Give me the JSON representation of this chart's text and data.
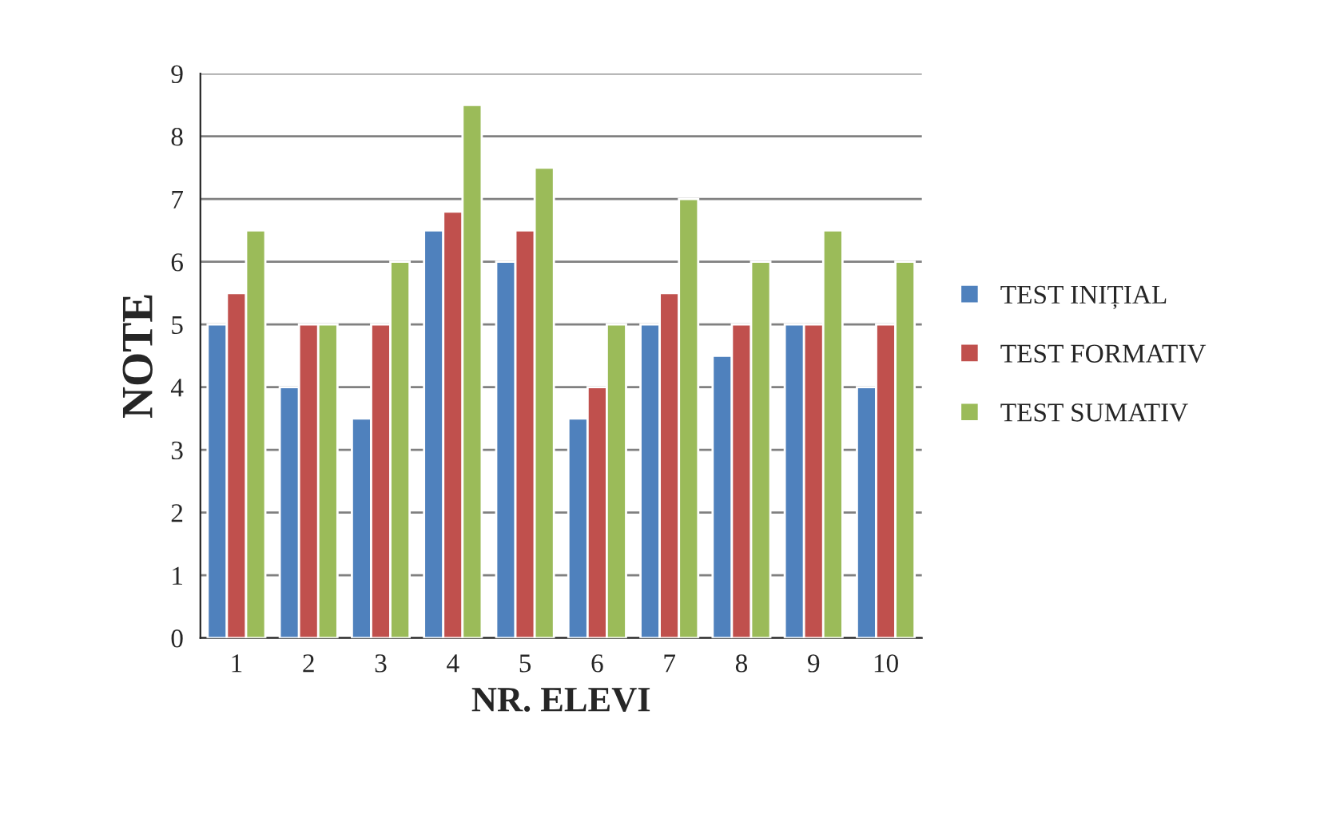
{
  "chart_data": {
    "type": "bar",
    "xlabel": "NR. ELEVI",
    "ylabel": "NOTE",
    "categories": [
      "1",
      "2",
      "3",
      "4",
      "5",
      "6",
      "7",
      "8",
      "9",
      "10"
    ],
    "series": [
      {
        "name": "TEST INIȚIAL",
        "color": "#4f81bd",
        "values": [
          5,
          4,
          3.5,
          6.5,
          6,
          3.5,
          5,
          4.5,
          5,
          4
        ]
      },
      {
        "name": "TEST FORMATIV",
        "color": "#c0504d",
        "values": [
          5.5,
          5,
          5,
          6.8,
          6.5,
          4,
          5.5,
          5,
          5,
          5
        ]
      },
      {
        "name": "TEST SUMATIV",
        "color": "#9bbb59",
        "values": [
          6.5,
          5,
          6,
          8.5,
          7.5,
          5,
          7,
          6,
          6.5,
          6
        ]
      }
    ],
    "ylim": [
      0,
      9
    ],
    "yticks": [
      0,
      1,
      2,
      3,
      4,
      5,
      6,
      7,
      8,
      9
    ],
    "grid": "y",
    "legend": "right"
  }
}
